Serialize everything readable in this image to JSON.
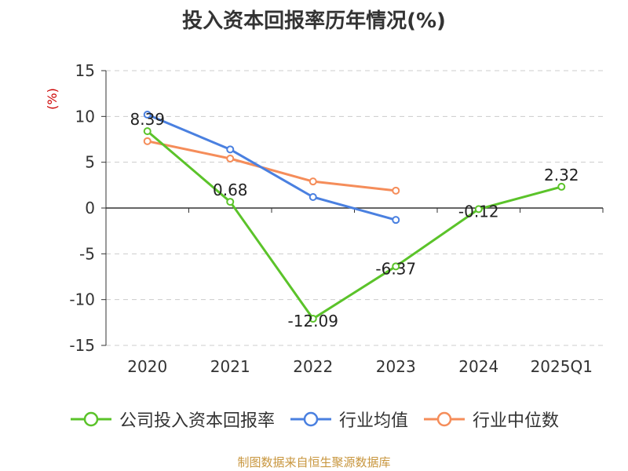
{
  "title": "投入资本回报率历年情况(%)",
  "source": "制图数据来自恒生聚源数据库",
  "colors": {
    "company": "#5bc32a",
    "industry_avg": "#4a80e0",
    "industry_median": "#f58d5a",
    "ylabel": "#cc0000",
    "grid": "#cccccc",
    "axis": "#333333"
  },
  "legend": {
    "company": "公司投入资本回报率",
    "industry_avg": "行业均值",
    "industry_median": "行业中位数"
  },
  "chart_data": {
    "type": "line",
    "title": "投入资本回报率历年情况(%)",
    "ylabel": "(%)",
    "xlabel": "",
    "categories": [
      "2020",
      "2021",
      "2022",
      "2023",
      "2024",
      "2025Q1"
    ],
    "ylim": [
      -15,
      15
    ],
    "yticks": [
      15,
      10,
      5,
      0,
      -5,
      -10,
      -15
    ],
    "grid": "horizontal dashed",
    "legend_position": "bottom",
    "series": [
      {
        "key": "company",
        "name": "公司投入资本回报率",
        "values": [
          8.39,
          0.68,
          -12.09,
          -6.37,
          -0.12,
          2.32
        ],
        "labels": [
          "8.39",
          "0.68",
          "-12.09",
          "-6.37",
          "-0.12",
          "2.32"
        ]
      },
      {
        "key": "industry_avg",
        "name": "行业均值",
        "values": [
          10.2,
          6.4,
          1.2,
          -1.3,
          null,
          null
        ]
      },
      {
        "key": "industry_median",
        "name": "行业中位数",
        "values": [
          7.3,
          5.4,
          2.9,
          1.9,
          null,
          null
        ]
      }
    ]
  }
}
